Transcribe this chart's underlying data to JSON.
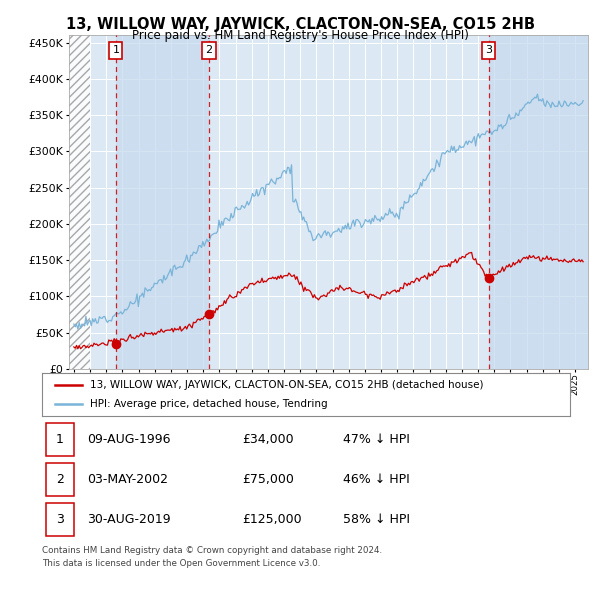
{
  "title": "13, WILLOW WAY, JAYWICK, CLACTON-ON-SEA, CO15 2HB",
  "subtitle": "Price paid vs. HM Land Registry's House Price Index (HPI)",
  "sale_dates": [
    1996.6,
    2002.35,
    2019.66
  ],
  "sale_prices": [
    34000,
    75000,
    125000
  ],
  "sale_labels": [
    "1",
    "2",
    "3"
  ],
  "hpi_color": "#7ab4d8",
  "sale_color": "#cc0000",
  "dashed_line_color": "#cc0000",
  "legend_entries": [
    "13, WILLOW WAY, JAYWICK, CLACTON-ON-SEA, CO15 2HB (detached house)",
    "HPI: Average price, detached house, Tendring"
  ],
  "table_entries": [
    {
      "num": "1",
      "date": "09-AUG-1996",
      "price": "£34,000",
      "pct": "47% ↓ HPI"
    },
    {
      "num": "2",
      "date": "03-MAY-2002",
      "price": "£75,000",
      "pct": "46% ↓ HPI"
    },
    {
      "num": "3",
      "date": "30-AUG-2019",
      "price": "£125,000",
      "pct": "58% ↓ HPI"
    }
  ],
  "footnote1": "Contains HM Land Registry data © Crown copyright and database right 2024.",
  "footnote2": "This data is licensed under the Open Government Licence v3.0.",
  "ylim": [
    0,
    460000
  ],
  "xlim_start": 1993.7,
  "xlim_end": 2025.8,
  "hatch_region_end": 1995.0,
  "plot_bg_color": "#dce8f4",
  "shade_color": "#c5d9ee"
}
